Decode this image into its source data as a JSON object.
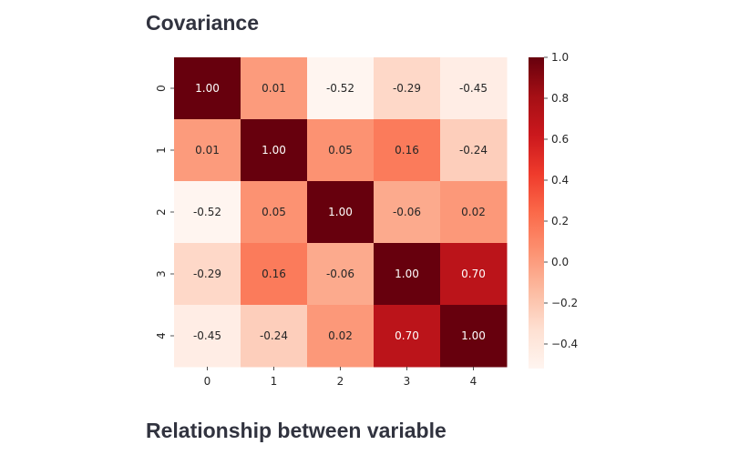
{
  "page": {
    "section_title": "Covariance",
    "next_section_title": "Relationship between variable"
  },
  "chart_data": {
    "type": "heatmap",
    "title": "",
    "xlabel": "",
    "ylabel": "",
    "x_categories": [
      "0",
      "1",
      "2",
      "3",
      "4"
    ],
    "y_categories": [
      "0",
      "1",
      "2",
      "3",
      "4"
    ],
    "values": [
      [
        1.0,
        0.01,
        -0.52,
        -0.29,
        -0.45
      ],
      [
        0.01,
        1.0,
        0.05,
        0.16,
        -0.24
      ],
      [
        -0.52,
        0.05,
        1.0,
        -0.06,
        0.02
      ],
      [
        -0.29,
        0.16,
        -0.06,
        1.0,
        0.7
      ],
      [
        -0.45,
        -0.24,
        0.02,
        0.7,
        1.0
      ]
    ],
    "annotation_format": "0.00",
    "colormap": "Reds",
    "colorbar": {
      "range": [
        -0.52,
        1.0
      ],
      "ticks": [
        -0.4,
        -0.2,
        0.0,
        0.2,
        0.4,
        0.6,
        0.8,
        1.0
      ],
      "tick_labels": [
        "−0.4",
        "−0.2",
        "0.0",
        "0.2",
        "0.4",
        "0.6",
        "0.8",
        "1.0"
      ]
    },
    "colors": {
      "low": "#fff5f0",
      "high": "#67000d",
      "text_dark": "#262626",
      "text_light": "#ffffff"
    }
  }
}
